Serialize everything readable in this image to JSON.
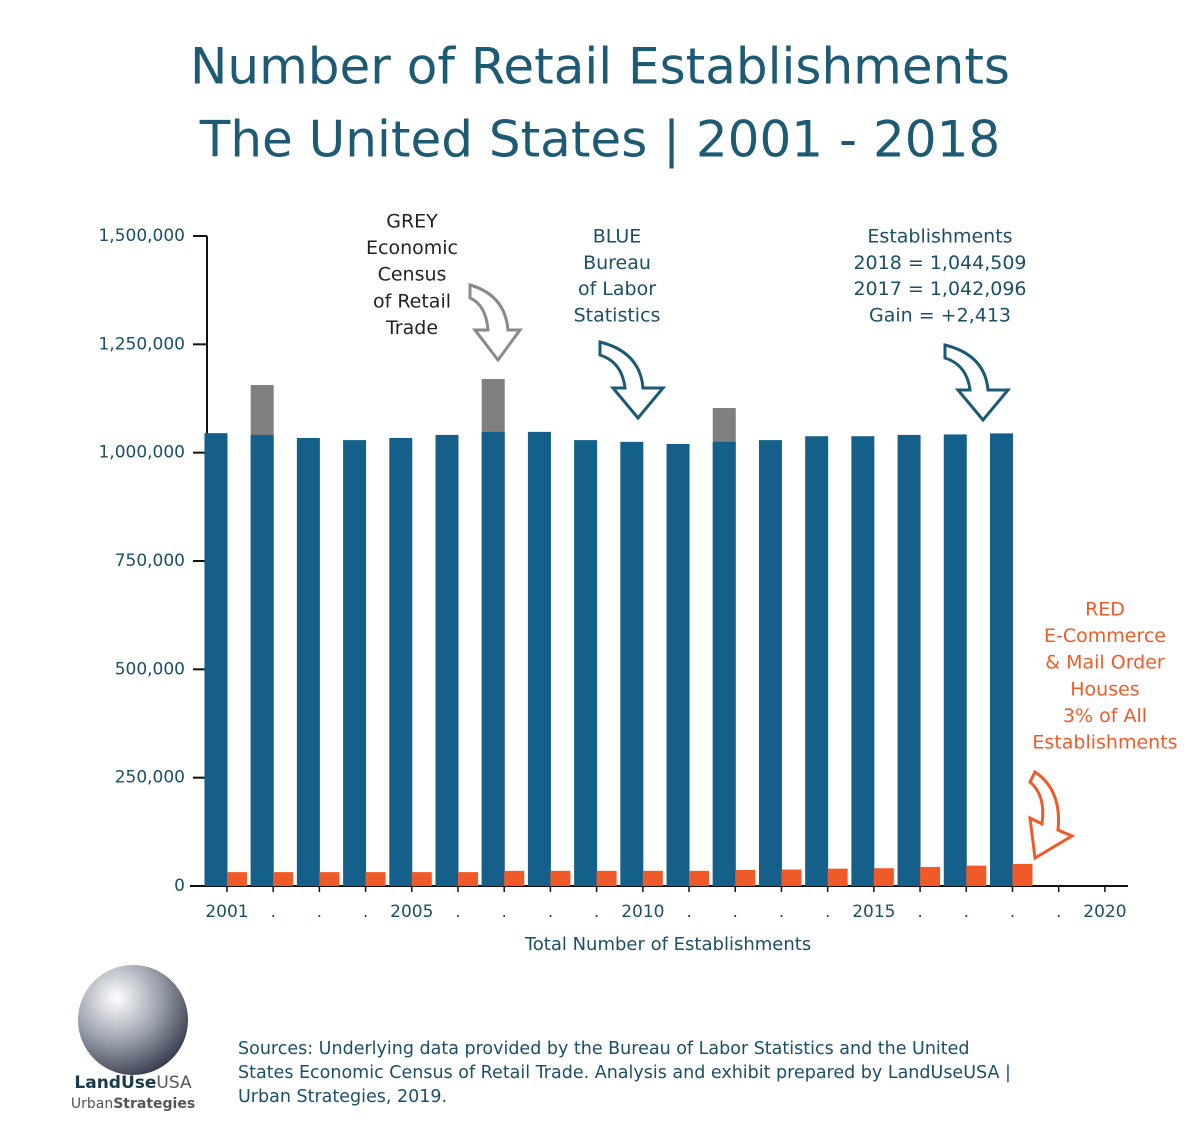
{
  "chart_data": {
    "type": "bar",
    "title_lines": [
      "Number of Retail Establishments",
      "The United States | 2001 - 2018"
    ],
    "x_label": "Total Number of Establishments",
    "x": [
      2001,
      2002,
      2003,
      2004,
      2005,
      2006,
      2007,
      2008,
      2009,
      2010,
      2011,
      2012,
      2013,
      2014,
      2015,
      2016,
      2017,
      2018
    ],
    "series": [
      {
        "color": "#7f7f7f",
        "values": [
          null,
          1156000,
          null,
          null,
          null,
          null,
          1170000,
          null,
          null,
          null,
          null,
          1103000,
          null,
          null,
          null,
          null,
          null,
          null
        ]
      },
      {
        "color": "#15608a",
        "values": [
          1045000,
          1041000,
          1034000,
          1029000,
          1034000,
          1041000,
          1048000,
          1048000,
          1029000,
          1025000,
          1020000,
          1025000,
          1029000,
          1038000,
          1038000,
          1041000,
          1042096,
          1044509
        ]
      },
      {
        "color": "#f05a28",
        "values": [
          32000,
          32000,
          32000,
          32000,
          32000,
          32000,
          35000,
          35000,
          35000,
          35000,
          35000,
          37000,
          38000,
          40000,
          41000,
          44000,
          47000,
          51000
        ]
      }
    ],
    "xlim": [
      2000.2,
      2020.5
    ],
    "xticks": [
      2001,
      {
        "value": 2002,
        "label": "."
      },
      {
        "value": 2003,
        "label": "."
      },
      {
        "value": 2004,
        "label": "."
      },
      2005,
      {
        "value": 2006,
        "label": "."
      },
      {
        "value": 2007,
        "label": "."
      },
      {
        "value": 2008,
        "label": "."
      },
      {
        "value": 2009,
        "label": "."
      },
      2010,
      {
        "value": 2011,
        "label": "."
      },
      {
        "value": 2012,
        "label": "."
      },
      {
        "value": 2013,
        "label": "."
      },
      {
        "value": 2014,
        "label": "."
      },
      2015,
      {
        "value": 2016,
        "label": "."
      },
      {
        "value": 2017,
        "label": "."
      },
      {
        "value": 2018,
        "label": "."
      },
      {
        "value": 2019,
        "label": "."
      },
      2020
    ],
    "ylim": [
      0,
      1500000
    ],
    "yticks": [
      0,
      {
        "value": 250000,
        "label": "250,000"
      },
      {
        "value": 500000,
        "label": "500,000"
      },
      {
        "value": 750000,
        "label": "750,000"
      },
      {
        "value": 1000000,
        "label": "1,000,000"
      },
      {
        "value": 1250000,
        "label": "1,250,000"
      },
      {
        "value": 1500000,
        "label": "1,500,000"
      }
    ],
    "grid": false,
    "annotations": [
      {
        "color": "#222222",
        "lines": [
          "GREY",
          "Economic",
          "Census",
          "of Retail",
          "Trade"
        ]
      },
      {
        "color": "#1b4f66",
        "lines": [
          "BLUE",
          "Bureau",
          "of Labor",
          "Statistics"
        ]
      },
      {
        "color": "#1b4f66",
        "lines": [
          "Establishments",
          "2018 = 1,044,509",
          "2017 = 1,042,096",
          "Gain = +2,413"
        ]
      },
      {
        "color": "#f05a28",
        "lines": [
          "RED",
          "E-Commerce",
          "& Mail Order",
          "Houses",
          "3% of All",
          "Establishments"
        ]
      }
    ]
  },
  "sources": [
    "Sources: Underlying data provided by the Bureau of Labor Statistics and the United",
    "States Economic Census of Retail Trade. Analysis and exhibit prepared by LandUseUSA |",
    "Urban Strategies, 2019."
  ],
  "logo": {
    "line1": [
      "LandUse",
      "USA"
    ],
    "line2": [
      "Urban",
      "Strategies"
    ]
  }
}
